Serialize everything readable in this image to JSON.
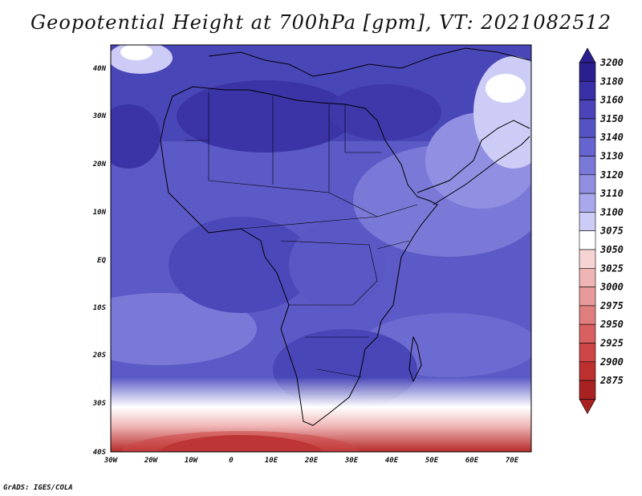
{
  "title": "Geopotential Height at 700hPa [gpm], VT: 2021082512",
  "footer": "GrADS: IGES/COLA",
  "map": {
    "lat_labels": [
      "40N",
      "30N",
      "20N",
      "10N",
      "EQ",
      "10S",
      "20S",
      "30S",
      "40S"
    ],
    "lon_labels": [
      "30W",
      "20W",
      "10W",
      "0",
      "10E",
      "20E",
      "30E",
      "40E",
      "50E",
      "60E",
      "70E"
    ]
  },
  "colorbar": {
    "levels": [
      {
        "label": "3200",
        "color": "#2a1f8c"
      },
      {
        "label": "3180",
        "color": "#3a30a6"
      },
      {
        "label": "3160",
        "color": "#4a44b8"
      },
      {
        "label": "3150",
        "color": "#5553c4"
      },
      {
        "label": "3140",
        "color": "#6664cf"
      },
      {
        "label": "3130",
        "color": "#7b79d8"
      },
      {
        "label": "3120",
        "color": "#908fe2"
      },
      {
        "label": "3110",
        "color": "#a9a8ec"
      },
      {
        "label": "3100",
        "color": "#cdccf6"
      },
      {
        "label": "3075",
        "color": "#ffffff"
      },
      {
        "label": "3050",
        "color": "#f7d4d4"
      },
      {
        "label": "3025",
        "color": "#efb4b4"
      },
      {
        "label": "3000",
        "color": "#e89a9a"
      },
      {
        "label": "2975",
        "color": "#e07e7e"
      },
      {
        "label": "2950",
        "color": "#d86060"
      },
      {
        "label": "2925",
        "color": "#cd4646"
      },
      {
        "label": "2900",
        "color": "#bd3030"
      },
      {
        "label": "2875",
        "color": "#a82222"
      }
    ]
  }
}
